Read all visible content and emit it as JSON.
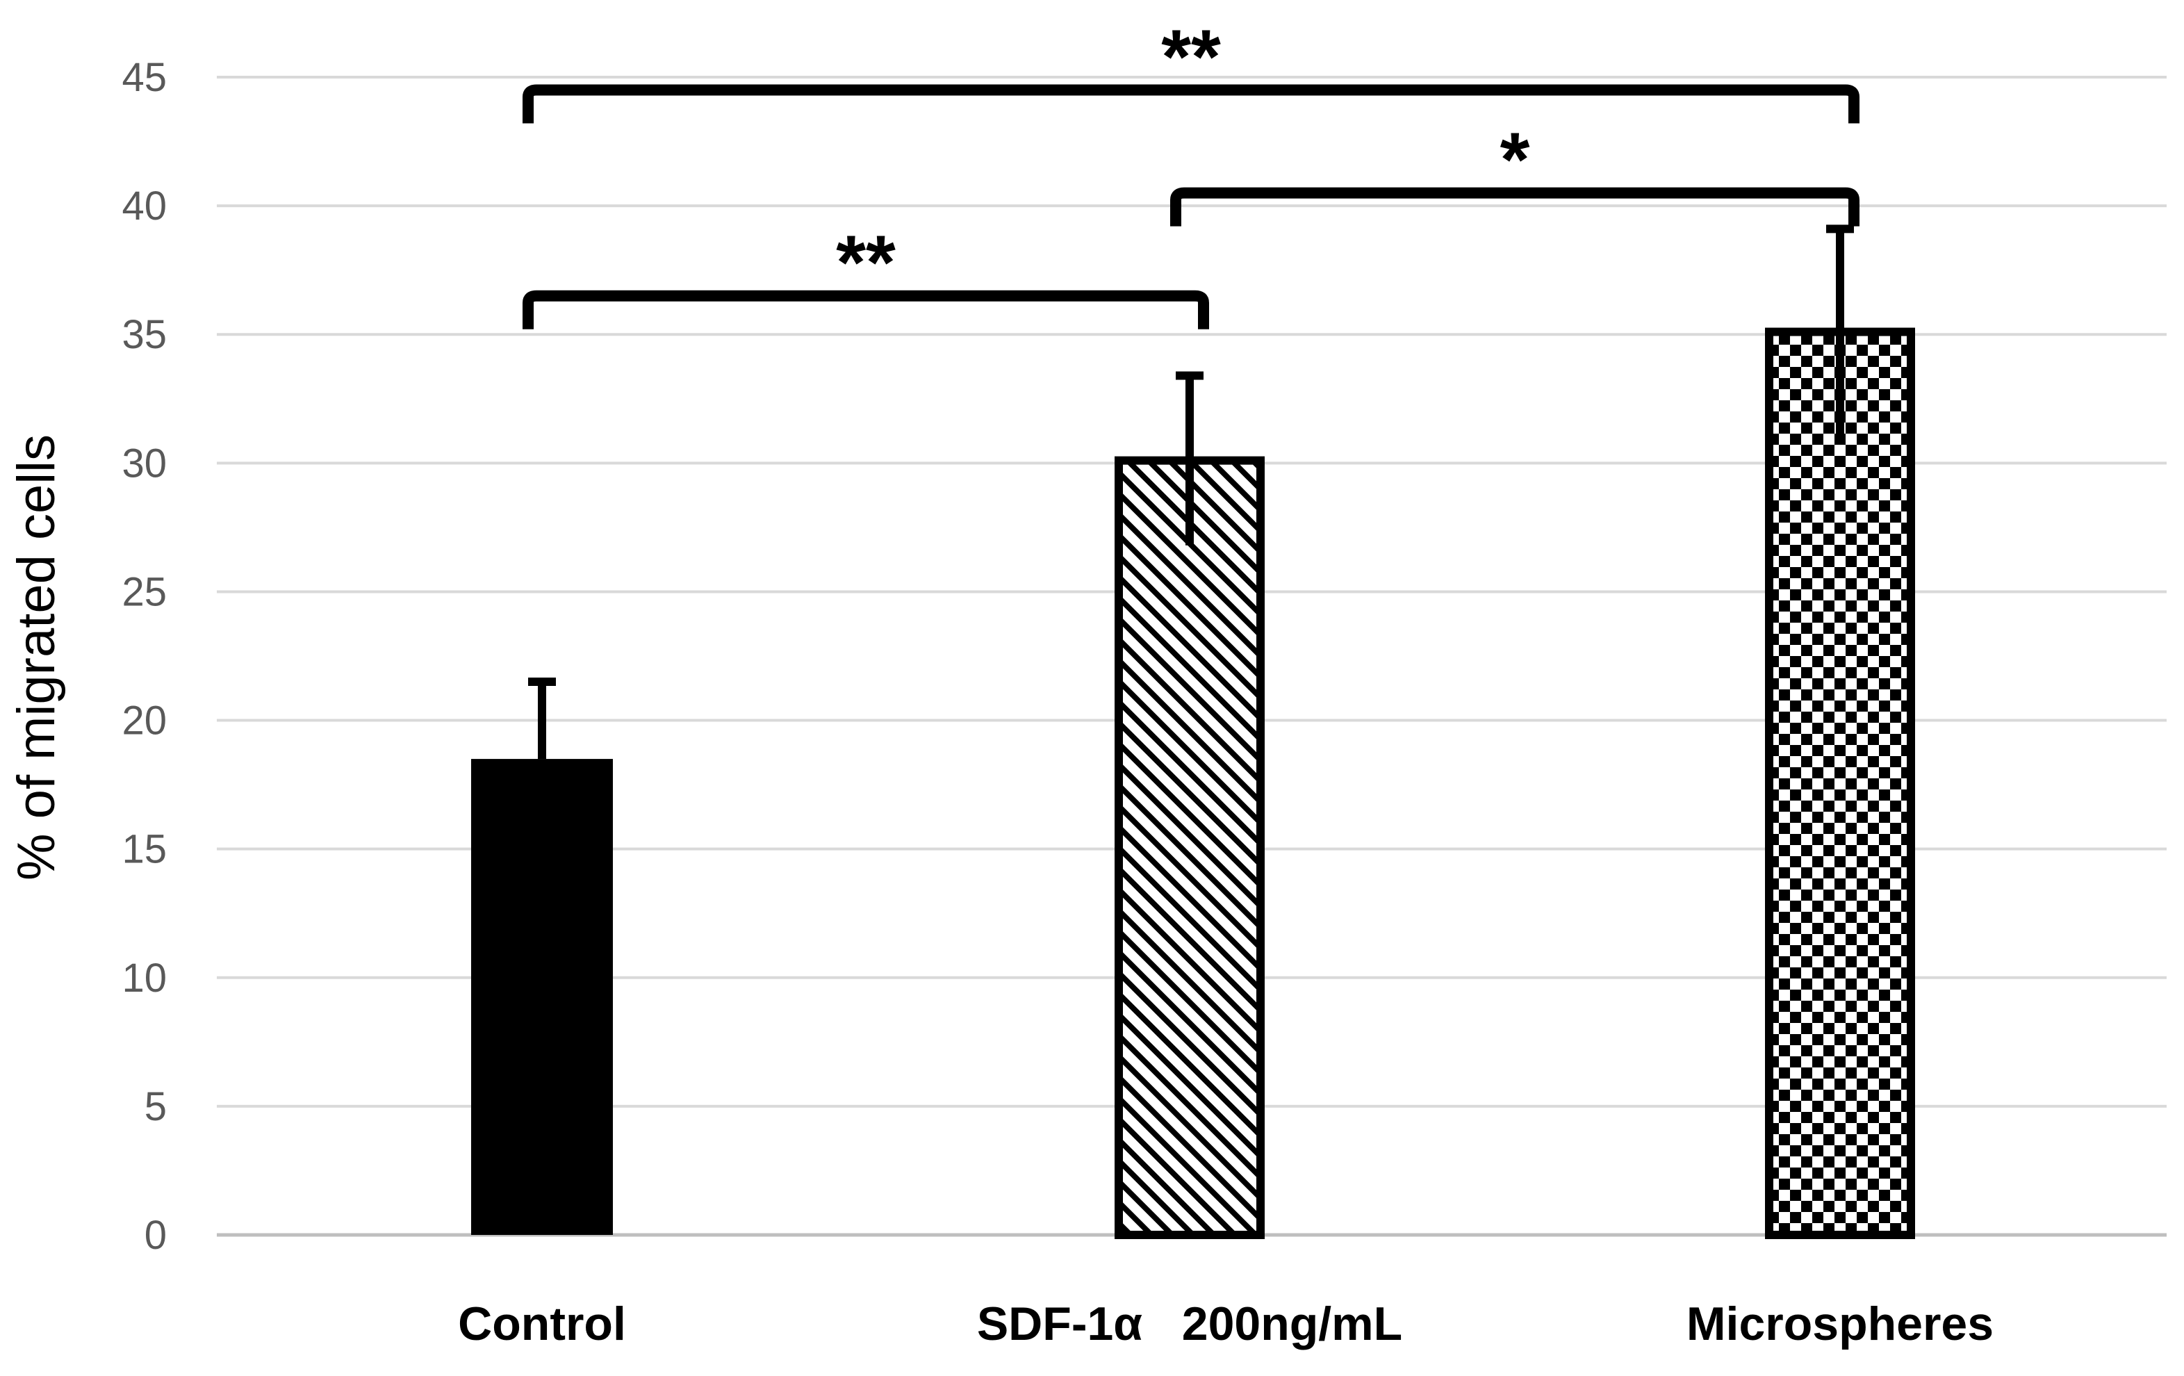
{
  "chart_data": {
    "type": "bar",
    "title": "",
    "xlabel": "",
    "ylabel": "% of migrated cells",
    "ylim": [
      0,
      45
    ],
    "yticks": [
      0,
      5,
      10,
      15,
      20,
      25,
      30,
      35,
      40,
      45
    ],
    "grid": true,
    "categories": [
      "Control",
      "SDF-1α   200ng/mL",
      "Microspheres"
    ],
    "values": [
      18.5,
      30.1,
      35.1
    ],
    "errors": [
      3.0,
      3.3,
      4.0
    ],
    "patterns": [
      "solid",
      "diagonal-stripes",
      "checkerboard"
    ],
    "significance": [
      {
        "from": 0,
        "to": 2,
        "label": "**",
        "level": 44.5
      },
      {
        "from": 1,
        "to": 2,
        "label": "*",
        "level": 40.5
      },
      {
        "from": 0,
        "to": 1,
        "label": "**",
        "level": 36.5
      }
    ]
  }
}
